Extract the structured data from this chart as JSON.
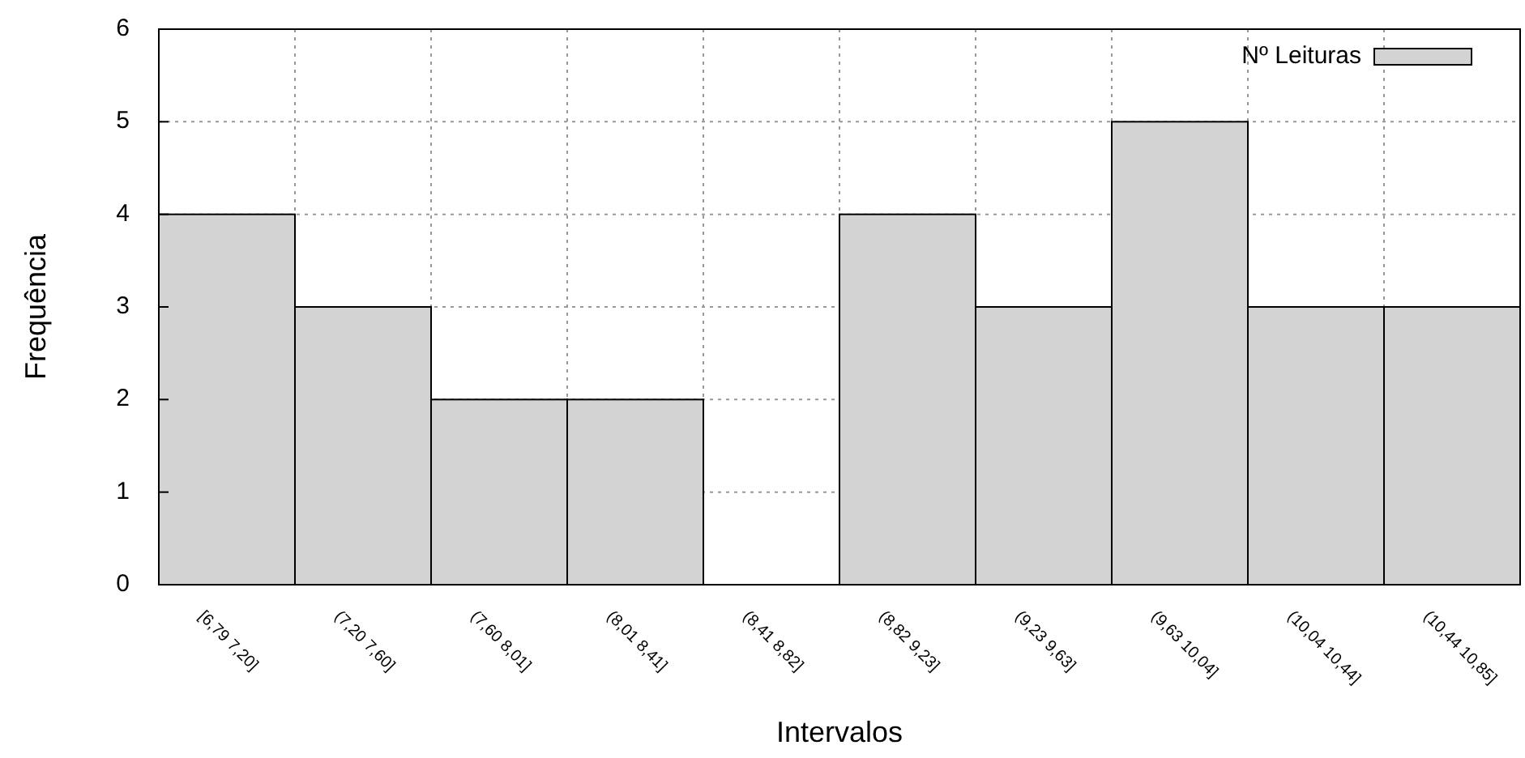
{
  "chart_data": {
    "type": "bar",
    "xlabel": "Intervalos",
    "ylabel": "Frequência",
    "categories": [
      "[6,79 7,20]",
      "(7,20 7,60]",
      "(7,60 8,01]",
      "(8,01 8,41]",
      "(8,41 8,82]",
      "(8,82 9,23]",
      "(9,23 9,63]",
      "(9,63 10,04]",
      "(10,04 10,44]",
      "(10,44 10,85]"
    ],
    "series": [
      {
        "name": "Nº Leituras",
        "color": "#d3d3d3",
        "values": [
          4,
          3,
          2,
          2,
          0,
          4,
          3,
          5,
          3,
          3
        ]
      }
    ],
    "ylim": [
      0,
      6
    ],
    "yticks": [
      0,
      1,
      2,
      3,
      4,
      5,
      6
    ],
    "grid": true,
    "legend": "top right"
  }
}
